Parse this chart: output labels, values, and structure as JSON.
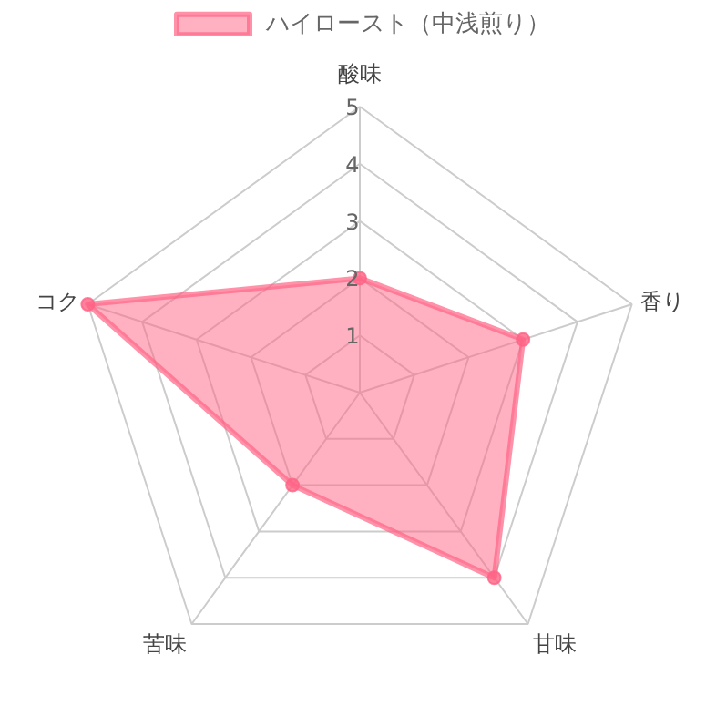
{
  "chart_data": {
    "type": "radar",
    "categories": [
      "酸味",
      "香り",
      "甘味",
      "苦味",
      "コク"
    ],
    "series": [
      {
        "name": "ハイロースト（中浅煎り）",
        "color": "#ff6384",
        "values": [
          2,
          3,
          4,
          2,
          5
        ]
      }
    ],
    "ylim": [
      0,
      5
    ],
    "yticks": [
      1,
      2,
      3,
      4,
      5
    ],
    "grid": true,
    "legend": "top",
    "marker": "circle",
    "line_style": "solid"
  }
}
